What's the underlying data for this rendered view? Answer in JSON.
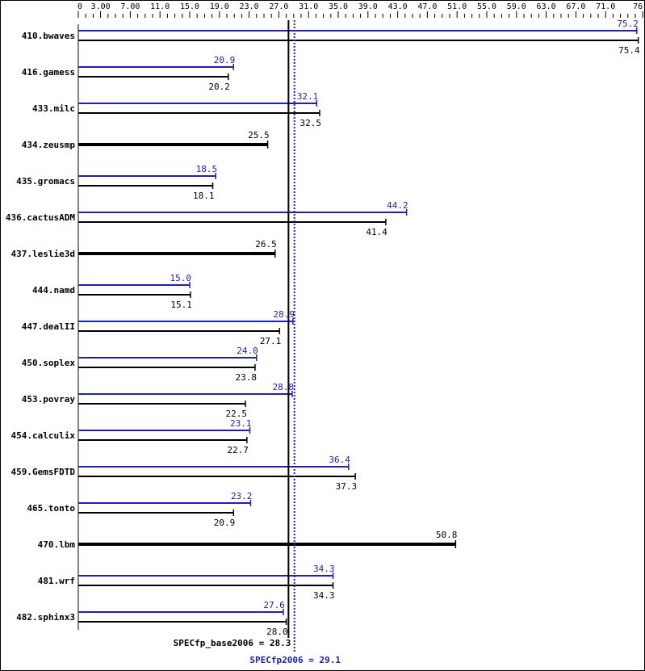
{
  "chart_data": {
    "type": "bar",
    "orientation": "horizontal",
    "xlim": [
      0,
      76.0
    ],
    "tick_labels": [
      "0",
      "3.00",
      "7.00",
      "11.0",
      "15.0",
      "19.0",
      "23.0",
      "27.0",
      "31.0",
      "35.0",
      "39.0",
      "43.0",
      "47.0",
      "51.0",
      "55.0",
      "59.0",
      "63.0",
      "67.0",
      "71.0",
      "76.0"
    ],
    "tick_values": [
      0,
      3,
      7,
      11,
      15,
      19,
      23,
      27,
      31,
      35,
      39,
      43,
      47,
      51,
      55,
      59,
      63,
      67,
      71,
      76
    ],
    "categories": [
      "410.bwaves",
      "416.gamess",
      "433.milc",
      "434.zeusmp",
      "435.gromacs",
      "436.cactusADM",
      "437.leslie3d",
      "444.namd",
      "447.dealII",
      "450.soplex",
      "453.povray",
      "454.calculix",
      "459.GemsFDTD",
      "465.tonto",
      "470.lbm",
      "481.wrf",
      "482.sphinx3"
    ],
    "series": [
      {
        "name": "SPECfp2006",
        "color": "#2020b0",
        "values": [
          75.2,
          20.9,
          32.1,
          null,
          18.5,
          44.2,
          null,
          15.0,
          28.9,
          24.0,
          28.8,
          23.1,
          36.4,
          23.2,
          null,
          34.3,
          27.6
        ]
      },
      {
        "name": "SPECfp_base2006",
        "color": "#000000",
        "values": [
          75.4,
          20.2,
          32.5,
          25.5,
          18.1,
          41.4,
          26.5,
          15.1,
          27.1,
          23.8,
          22.5,
          22.7,
          37.3,
          20.9,
          50.8,
          34.3,
          28.0
        ]
      }
    ],
    "reference_lines": [
      {
        "label": "SPECfp_base2006 = 28.3",
        "value": 28.3,
        "color": "#000000",
        "style": "solid"
      },
      {
        "label": "SPECfp2006 = 29.1",
        "value": 29.1,
        "color": "#2020b0",
        "style": "dotted"
      }
    ]
  }
}
